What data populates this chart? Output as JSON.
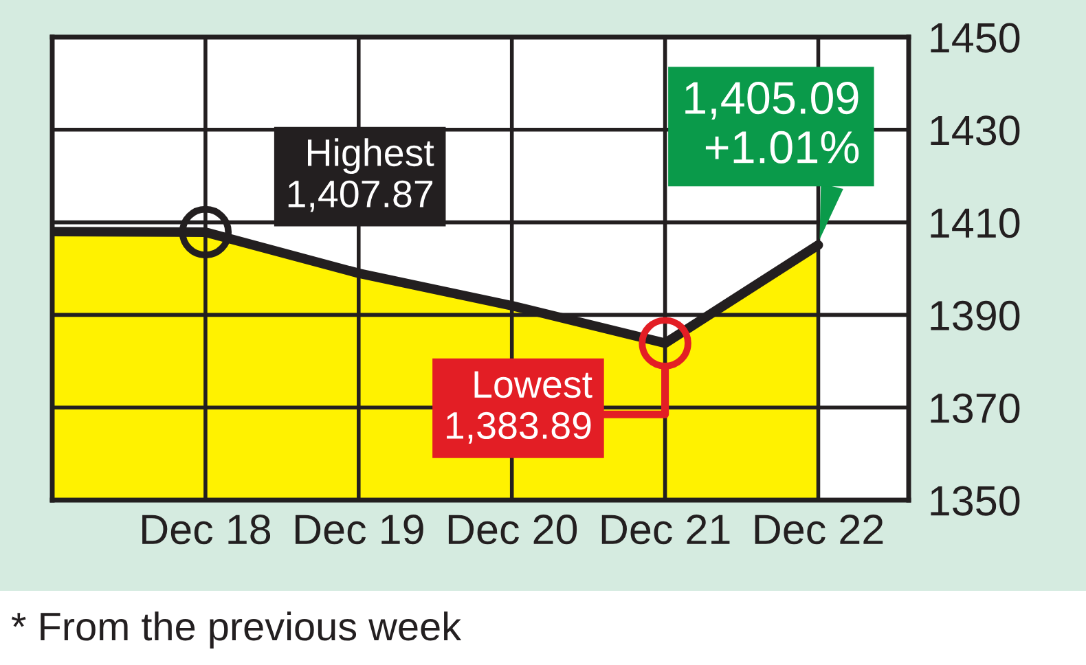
{
  "chart_data": {
    "type": "area",
    "categories": [
      null,
      "Dec 18",
      "Dec 19",
      "Dec 20",
      "Dec 21",
      "Dec 22"
    ],
    "values": [
      1408,
      1407.87,
      1399,
      1392,
      1383.89,
      1405.09
    ],
    "color": "#fff200",
    "ylim": [
      1350,
      1450
    ],
    "yticks": [
      1350,
      1370,
      1390,
      1410,
      1430,
      1450
    ],
    "grid": true,
    "annotations": [
      {
        "text": "Highest\n1,407.87",
        "x": "Dec 18",
        "y": 1407.87
      },
      {
        "text": "Lowest\n1,383.89",
        "x": "Dec 21",
        "y": 1383.89
      },
      {
        "text": "1,405.09\n+1.01%",
        "x": "Dec 22",
        "y": 1405.09
      },
      "* From the previous week"
    ]
  }
}
